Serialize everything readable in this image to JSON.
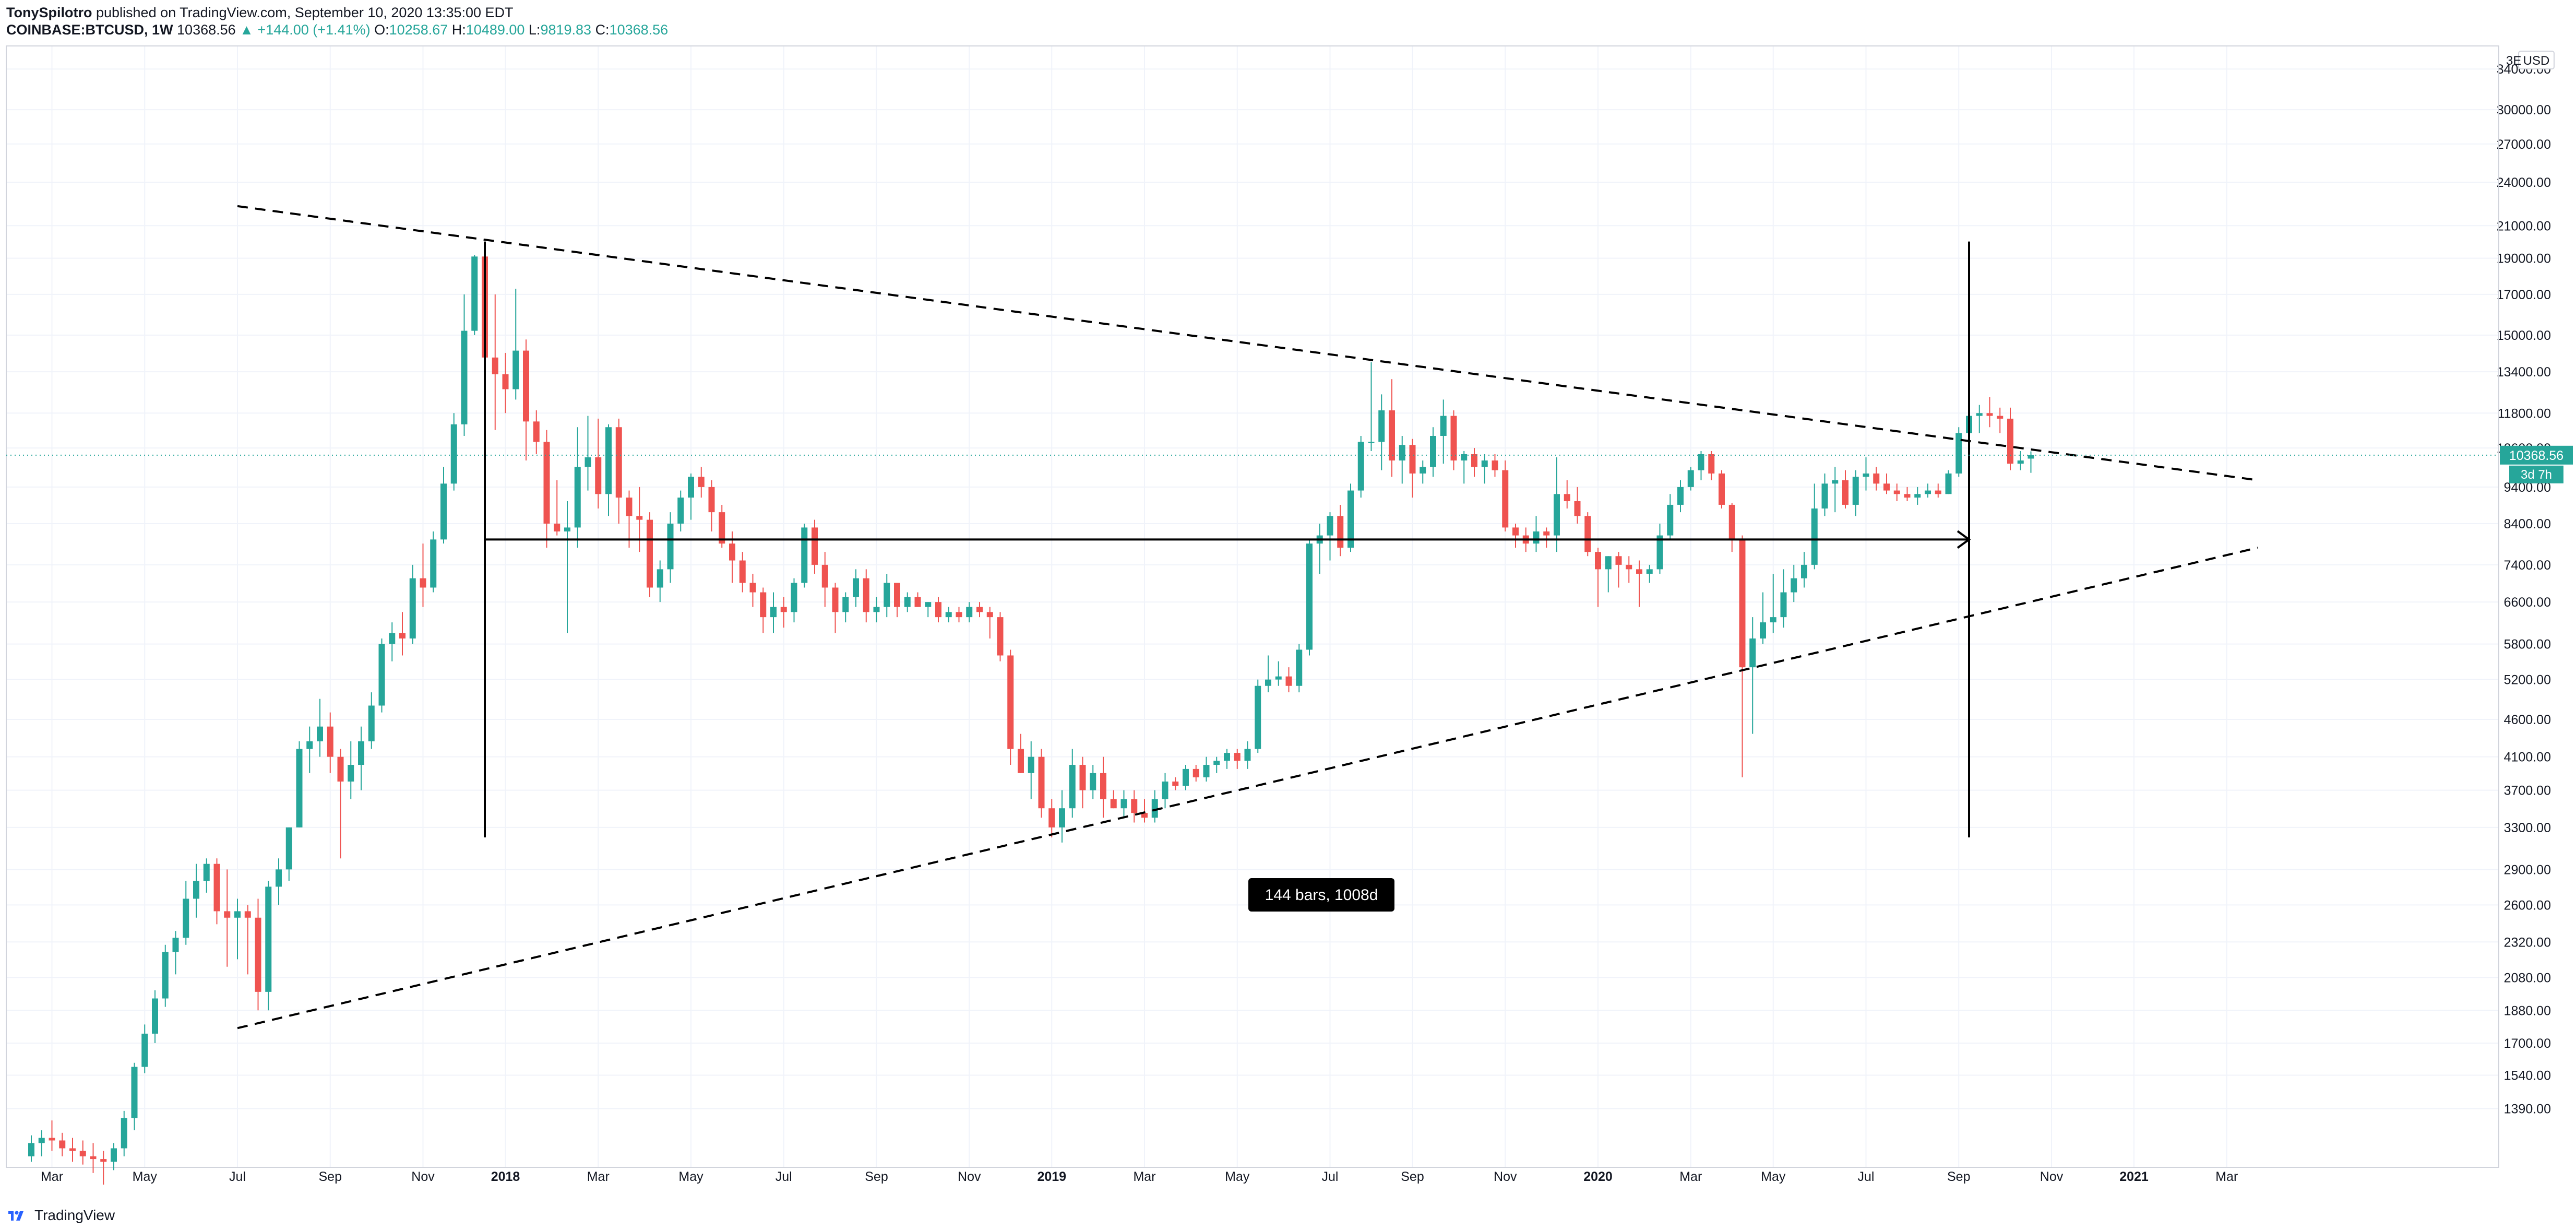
{
  "header": {
    "author": "TonySpilotro",
    "published_text": "published on TradingView.com, September 10, 2020 13:35:00 EDT",
    "symbol": "COINBASE:BTCUSD, 1W",
    "last": "10368.56",
    "change_arrow": "▲",
    "change": "+144.00 (+1.41%)",
    "open_label": "O:",
    "open": "10258.67",
    "high_label": "H:",
    "high": "10489.00",
    "low_label": "L:",
    "low": "9819.83",
    "close_label": "C:",
    "close": "10368.56"
  },
  "price_axis": {
    "currency": "USD",
    "last_price_label": "10368.56",
    "countdown_label": "3d 7h",
    "top_partial_label": "3E"
  },
  "measure": {
    "label": "144 bars, 1008d"
  },
  "footer": {
    "brand": "TradingView",
    "logo_icon": "tradingview-logo-icon"
  },
  "colors": {
    "up": "#26a69a",
    "down": "#ef5350",
    "grid": "#f0f3fa",
    "axis_text": "#131722"
  },
  "chart_data": {
    "type": "candlestick",
    "title": "",
    "scale": "log",
    "interval": "1W",
    "grid": true,
    "y_ticks": [
      1390,
      1540,
      1700,
      1880,
      2080,
      2320,
      2600,
      2900,
      3300,
      3700,
      4100,
      4600,
      5200,
      5800,
      6600,
      7400,
      8400,
      9400,
      10600,
      11800,
      13400,
      15000,
      17000,
      19000,
      21000,
      24000,
      27000,
      30000,
      34000
    ],
    "x_ticks": [
      {
        "label": "Mar",
        "bar": 2
      },
      {
        "label": "May",
        "bar": 11
      },
      {
        "label": "Jul",
        "bar": 20
      },
      {
        "label": "Sep",
        "bar": 29
      },
      {
        "label": "Nov",
        "bar": 38
      },
      {
        "label": "2018",
        "bar": 46
      },
      {
        "label": "Mar",
        "bar": 55
      },
      {
        "label": "May",
        "bar": 64
      },
      {
        "label": "Jul",
        "bar": 73
      },
      {
        "label": "Sep",
        "bar": 82
      },
      {
        "label": "Nov",
        "bar": 91
      },
      {
        "label": "2019",
        "bar": 99
      },
      {
        "label": "Mar",
        "bar": 108
      },
      {
        "label": "May",
        "bar": 117
      },
      {
        "label": "Jul",
        "bar": 126
      },
      {
        "label": "Sep",
        "bar": 134
      },
      {
        "label": "Nov",
        "bar": 143
      },
      {
        "label": "2020",
        "bar": 152
      },
      {
        "label": "Mar",
        "bar": 161
      },
      {
        "label": "May",
        "bar": 169
      },
      {
        "label": "Jul",
        "bar": 178
      },
      {
        "label": "Sep",
        "bar": 187
      },
      {
        "label": "Nov",
        "bar": 196
      },
      {
        "label": "2021",
        "bar": 204
      },
      {
        "label": "Mar",
        "bar": 213
      }
    ],
    "candles": [
      [
        1200,
        1280,
        1180,
        1250
      ],
      [
        1250,
        1300,
        1200,
        1270
      ],
      [
        1270,
        1340,
        1220,
        1260
      ],
      [
        1260,
        1290,
        1200,
        1230
      ],
      [
        1230,
        1270,
        1180,
        1220
      ],
      [
        1220,
        1260,
        1170,
        1200
      ],
      [
        1200,
        1250,
        1140,
        1190
      ],
      [
        1190,
        1220,
        1100,
        1180
      ],
      [
        1180,
        1250,
        1150,
        1230
      ],
      [
        1230,
        1380,
        1200,
        1350
      ],
      [
        1350,
        1600,
        1300,
        1580
      ],
      [
        1580,
        1800,
        1550,
        1750
      ],
      [
        1750,
        2000,
        1700,
        1950
      ],
      [
        1950,
        2300,
        1900,
        2250
      ],
      [
        2250,
        2400,
        2100,
        2350
      ],
      [
        2350,
        2800,
        2300,
        2650
      ],
      [
        2650,
        2950,
        2500,
        2800
      ],
      [
        2800,
        3000,
        2700,
        2950
      ],
      [
        2950,
        3000,
        2450,
        2550
      ],
      [
        2550,
        2900,
        2150,
        2500
      ],
      [
        2500,
        2650,
        2200,
        2550
      ],
      [
        2550,
        2600,
        2100,
        2500
      ],
      [
        2500,
        2650,
        1880,
        1990
      ],
      [
        1990,
        2800,
        1880,
        2750
      ],
      [
        2750,
        3000,
        2600,
        2900
      ],
      [
        2900,
        3300,
        2800,
        3300
      ],
      [
        3300,
        4300,
        3300,
        4200
      ],
      [
        4200,
        4500,
        3900,
        4300
      ],
      [
        4300,
        4900,
        4100,
        4500
      ],
      [
        4500,
        4700,
        3900,
        4100
      ],
      [
        4100,
        4200,
        3000,
        3800
      ],
      [
        3800,
        4300,
        3600,
        4000
      ],
      [
        4000,
        4500,
        3700,
        4300
      ],
      [
        4300,
        5000,
        4200,
        4800
      ],
      [
        4800,
        5900,
        4700,
        5800
      ],
      [
        5800,
        6200,
        5500,
        6000
      ],
      [
        6000,
        6400,
        5600,
        5900
      ],
      [
        5900,
        7400,
        5800,
        7100
      ],
      [
        7100,
        7900,
        6500,
        6900
      ],
      [
        6900,
        8200,
        6800,
        8000
      ],
      [
        8000,
        10000,
        7900,
        9500
      ],
      [
        9500,
        11800,
        9300,
        11400
      ],
      [
        11400,
        17000,
        11000,
        15200
      ],
      [
        15200,
        19200,
        15000,
        19100
      ],
      [
        19100,
        19300,
        13000,
        14000
      ],
      [
        14000,
        17000,
        11200,
        13300
      ],
      [
        13300,
        14200,
        11800,
        12700
      ],
      [
        12700,
        17300,
        12300,
        14300
      ],
      [
        14300,
        14800,
        10200,
        11500
      ],
      [
        11500,
        11900,
        10400,
        10800
      ],
      [
        10800,
        11200,
        7800,
        8400
      ],
      [
        8400,
        9600,
        8100,
        8200
      ],
      [
        8200,
        9000,
        6000,
        8300
      ],
      [
        8300,
        11300,
        7800,
        10000
      ],
      [
        10000,
        11700,
        9300,
        10300
      ],
      [
        10300,
        11600,
        8800,
        9200
      ],
      [
        9200,
        11400,
        8600,
        11300
      ],
      [
        11300,
        11600,
        8400,
        9100
      ],
      [
        9100,
        9300,
        7800,
        8600
      ],
      [
        8600,
        9400,
        7700,
        8500
      ],
      [
        8500,
        8700,
        6700,
        6900
      ],
      [
        6900,
        7500,
        6600,
        7300
      ],
      [
        7300,
        8700,
        7000,
        8400
      ],
      [
        8400,
        9300,
        8200,
        9100
      ],
      [
        9100,
        9800,
        8500,
        9700
      ],
      [
        9700,
        10000,
        9100,
        9400
      ],
      [
        9400,
        9600,
        8200,
        8700
      ],
      [
        8700,
        8900,
        7800,
        7900
      ],
      [
        7900,
        8200,
        7000,
        7500
      ],
      [
        7500,
        7700,
        6800,
        7000
      ],
      [
        7000,
        7200,
        6500,
        6800
      ],
      [
        6800,
        6900,
        6000,
        6300
      ],
      [
        6300,
        6800,
        6000,
        6500
      ],
      [
        6500,
        6700,
        6100,
        6400
      ],
      [
        6400,
        7100,
        6200,
        7000
      ],
      [
        7000,
        8400,
        6900,
        8300
      ],
      [
        8300,
        8500,
        7200,
        7400
      ],
      [
        7400,
        7700,
        6500,
        6900
      ],
      [
        6900,
        7000,
        6000,
        6400
      ],
      [
        6400,
        6800,
        6200,
        6700
      ],
      [
        6700,
        7300,
        6500,
        7100
      ],
      [
        7100,
        7300,
        6200,
        6400
      ],
      [
        6400,
        6700,
        6200,
        6500
      ],
      [
        6500,
        7200,
        6300,
        7000
      ],
      [
        7000,
        7000,
        6300,
        6500
      ],
      [
        6500,
        6800,
        6400,
        6700
      ],
      [
        6700,
        6800,
        6500,
        6500
      ],
      [
        6500,
        6600,
        6300,
        6600
      ],
      [
        6600,
        6700,
        6200,
        6300
      ],
      [
        6300,
        6500,
        6200,
        6400
      ],
      [
        6400,
        6500,
        6200,
        6300
      ],
      [
        6300,
        6600,
        6200,
        6500
      ],
      [
        6500,
        6600,
        6300,
        6400
      ],
      [
        6400,
        6500,
        5900,
        6300
      ],
      [
        6300,
        6400,
        5500,
        5600
      ],
      [
        5600,
        5700,
        4000,
        4200
      ],
      [
        4200,
        4400,
        3900,
        3900
      ],
      [
        3900,
        4300,
        3600,
        4100
      ],
      [
        4100,
        4200,
        3400,
        3500
      ],
      [
        3500,
        3600,
        3200,
        3300
      ],
      [
        3300,
        3700,
        3150,
        3500
      ],
      [
        3500,
        4200,
        3400,
        4000
      ],
      [
        4000,
        4100,
        3500,
        3700
      ],
      [
        3700,
        4000,
        3600,
        3900
      ],
      [
        3900,
        4100,
        3400,
        3600
      ],
      [
        3600,
        3700,
        3500,
        3500
      ],
      [
        3500,
        3700,
        3400,
        3600
      ],
      [
        3600,
        3700,
        3350,
        3450
      ],
      [
        3450,
        3600,
        3350,
        3400
      ],
      [
        3400,
        3700,
        3350,
        3600
      ],
      [
        3600,
        3900,
        3500,
        3800
      ],
      [
        3800,
        3850,
        3700,
        3750
      ],
      [
        3750,
        4000,
        3700,
        3950
      ],
      [
        3950,
        4000,
        3800,
        3850
      ],
      [
        3850,
        4100,
        3800,
        4000
      ],
      [
        4000,
        4100,
        3900,
        4050
      ],
      [
        4050,
        4200,
        3950,
        4150
      ],
      [
        4150,
        4200,
        3950,
        4050
      ],
      [
        4050,
        4300,
        3950,
        4200
      ],
      [
        4200,
        5200,
        4150,
        5100
      ],
      [
        5100,
        5600,
        5000,
        5200
      ],
      [
        5200,
        5500,
        5100,
        5250
      ],
      [
        5250,
        5400,
        5000,
        5100
      ],
      [
        5100,
        5800,
        5000,
        5700
      ],
      [
        5700,
        8000,
        5600,
        7900
      ],
      [
        7900,
        8400,
        7200,
        8100
      ],
      [
        8100,
        8700,
        7500,
        8600
      ],
      [
        8600,
        8900,
        7600,
        7800
      ],
      [
        7800,
        9500,
        7700,
        9300
      ],
      [
        9300,
        11000,
        9100,
        10800
      ],
      [
        10800,
        13800,
        10500,
        10800
      ],
      [
        10800,
        12500,
        9900,
        11900
      ],
      [
        11900,
        13100,
        9700,
        10200
      ],
      [
        10200,
        11000,
        9500,
        10700
      ],
      [
        10700,
        10900,
        9100,
        9800
      ],
      [
        9800,
        10200,
        9500,
        10000
      ],
      [
        10000,
        11300,
        9700,
        11000
      ],
      [
        11000,
        12300,
        10100,
        11700
      ],
      [
        11700,
        11900,
        9900,
        10200
      ],
      [
        10200,
        10500,
        9500,
        10400
      ],
      [
        10400,
        10600,
        9700,
        10000
      ],
      [
        10000,
        10400,
        9500,
        10200
      ],
      [
        10200,
        10400,
        9700,
        9900
      ],
      [
        9900,
        10200,
        8200,
        8300
      ],
      [
        8300,
        8400,
        7800,
        8100
      ],
      [
        8100,
        8300,
        7700,
        7900
      ],
      [
        7900,
        8600,
        7700,
        8200
      ],
      [
        8200,
        8300,
        7800,
        8100
      ],
      [
        8100,
        10300,
        7700,
        9200
      ],
      [
        9200,
        9600,
        8800,
        9000
      ],
      [
        9000,
        9400,
        8400,
        8600
      ],
      [
        8600,
        8700,
        7600,
        7700
      ],
      [
        7700,
        7800,
        6500,
        7300
      ],
      [
        7300,
        7600,
        6800,
        7600
      ],
      [
        7600,
        7700,
        6900,
        7400
      ],
      [
        7400,
        7600,
        7000,
        7300
      ],
      [
        7300,
        7500,
        6500,
        7200
      ],
      [
        7200,
        7400,
        7000,
        7300
      ],
      [
        7300,
        8400,
        7200,
        8100
      ],
      [
        8100,
        9200,
        8000,
        8900
      ],
      [
        8900,
        9600,
        8700,
        9400
      ],
      [
        9400,
        10000,
        9300,
        9900
      ],
      [
        9900,
        10500,
        9600,
        10400
      ],
      [
        10400,
        10500,
        9600,
        9800
      ],
      [
        9800,
        9900,
        8800,
        8900
      ],
      [
        8900,
        8950,
        7700,
        8000
      ],
      [
        8000,
        8100,
        3850,
        5400
      ],
      [
        5400,
        6300,
        4400,
        5900
      ],
      [
        5900,
        6800,
        5800,
        6200
      ],
      [
        6200,
        7200,
        6000,
        6300
      ],
      [
        6300,
        7300,
        6100,
        6800
      ],
      [
        6800,
        7400,
        6600,
        7100
      ],
      [
        7100,
        7700,
        6900,
        7400
      ],
      [
        7400,
        9500,
        7300,
        8800
      ],
      [
        8800,
        9800,
        8600,
        9500
      ],
      [
        9500,
        10000,
        8700,
        9600
      ],
      [
        9600,
        9900,
        8800,
        8900
      ],
      [
        8900,
        9900,
        8600,
        9700
      ],
      [
        9700,
        10300,
        9300,
        9800
      ],
      [
        9800,
        10000,
        9300,
        9500
      ],
      [
        9500,
        9800,
        9200,
        9300
      ],
      [
        9300,
        9500,
        9000,
        9200
      ],
      [
        9200,
        9400,
        9000,
        9100
      ],
      [
        9100,
        9400,
        8900,
        9200
      ],
      [
        9200,
        9500,
        9100,
        9300
      ],
      [
        9300,
        9500,
        9100,
        9200
      ],
      [
        9200,
        9900,
        9200,
        9800
      ],
      [
        9800,
        11300,
        9700,
        11100
      ],
      [
        11100,
        12100,
        10600,
        11700
      ],
      [
        11700,
        12100,
        11100,
        11800
      ],
      [
        11800,
        12400,
        11300,
        11700
      ],
      [
        11700,
        12000,
        11100,
        11600
      ],
      [
        11600,
        12000,
        9900,
        10100
      ],
      [
        10100,
        10500,
        9900,
        10200
      ],
      [
        10258.67,
        10489,
        9819.83,
        10368.56
      ]
    ],
    "drawings": {
      "trend_upper": {
        "from": [
          20,
          22300
        ],
        "to": [
          216,
          9600
        ],
        "style": "dashed"
      },
      "trend_lower": {
        "from": [
          20,
          1780
        ],
        "to": [
          216,
          7800
        ],
        "style": "dashed"
      },
      "range_start": {
        "bar": 44,
        "from_price": 3200,
        "to_price": 20000
      },
      "range_end": {
        "bar": 188,
        "from_price": 3200,
        "to_price": 20000
      },
      "range_arrow": {
        "from_bar": 44,
        "to_bar": 188,
        "price": 8000
      }
    }
  }
}
